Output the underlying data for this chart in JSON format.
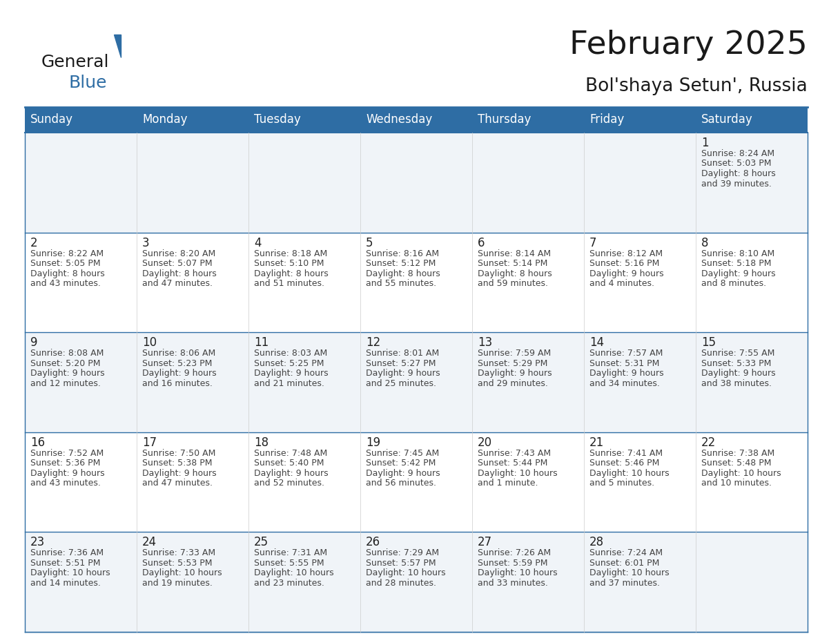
{
  "title": "February 2025",
  "subtitle": "Bol'shaya Setun', Russia",
  "header_bg": "#2E6DA4",
  "header_text_color": "#FFFFFF",
  "border_color": "#2E6DA4",
  "grid_line_color": "#AAAAAA",
  "day_headers": [
    "Sunday",
    "Monday",
    "Tuesday",
    "Wednesday",
    "Thursday",
    "Friday",
    "Saturday"
  ],
  "days": [
    {
      "day": 1,
      "col": 6,
      "row": 0,
      "sunrise": "8:24 AM",
      "sunset": "5:03 PM",
      "daylight": "8 hours",
      "daylight2": "and 39 minutes."
    },
    {
      "day": 2,
      "col": 0,
      "row": 1,
      "sunrise": "8:22 AM",
      "sunset": "5:05 PM",
      "daylight": "8 hours",
      "daylight2": "and 43 minutes."
    },
    {
      "day": 3,
      "col": 1,
      "row": 1,
      "sunrise": "8:20 AM",
      "sunset": "5:07 PM",
      "daylight": "8 hours",
      "daylight2": "and 47 minutes."
    },
    {
      "day": 4,
      "col": 2,
      "row": 1,
      "sunrise": "8:18 AM",
      "sunset": "5:10 PM",
      "daylight": "8 hours",
      "daylight2": "and 51 minutes."
    },
    {
      "day": 5,
      "col": 3,
      "row": 1,
      "sunrise": "8:16 AM",
      "sunset": "5:12 PM",
      "daylight": "8 hours",
      "daylight2": "and 55 minutes."
    },
    {
      "day": 6,
      "col": 4,
      "row": 1,
      "sunrise": "8:14 AM",
      "sunset": "5:14 PM",
      "daylight": "8 hours",
      "daylight2": "and 59 minutes."
    },
    {
      "day": 7,
      "col": 5,
      "row": 1,
      "sunrise": "8:12 AM",
      "sunset": "5:16 PM",
      "daylight": "9 hours",
      "daylight2": "and 4 minutes."
    },
    {
      "day": 8,
      "col": 6,
      "row": 1,
      "sunrise": "8:10 AM",
      "sunset": "5:18 PM",
      "daylight": "9 hours",
      "daylight2": "and 8 minutes."
    },
    {
      "day": 9,
      "col": 0,
      "row": 2,
      "sunrise": "8:08 AM",
      "sunset": "5:20 PM",
      "daylight": "9 hours",
      "daylight2": "and 12 minutes."
    },
    {
      "day": 10,
      "col": 1,
      "row": 2,
      "sunrise": "8:06 AM",
      "sunset": "5:23 PM",
      "daylight": "9 hours",
      "daylight2": "and 16 minutes."
    },
    {
      "day": 11,
      "col": 2,
      "row": 2,
      "sunrise": "8:03 AM",
      "sunset": "5:25 PM",
      "daylight": "9 hours",
      "daylight2": "and 21 minutes."
    },
    {
      "day": 12,
      "col": 3,
      "row": 2,
      "sunrise": "8:01 AM",
      "sunset": "5:27 PM",
      "daylight": "9 hours",
      "daylight2": "and 25 minutes."
    },
    {
      "day": 13,
      "col": 4,
      "row": 2,
      "sunrise": "7:59 AM",
      "sunset": "5:29 PM",
      "daylight": "9 hours",
      "daylight2": "and 29 minutes."
    },
    {
      "day": 14,
      "col": 5,
      "row": 2,
      "sunrise": "7:57 AM",
      "sunset": "5:31 PM",
      "daylight": "9 hours",
      "daylight2": "and 34 minutes."
    },
    {
      "day": 15,
      "col": 6,
      "row": 2,
      "sunrise": "7:55 AM",
      "sunset": "5:33 PM",
      "daylight": "9 hours",
      "daylight2": "and 38 minutes."
    },
    {
      "day": 16,
      "col": 0,
      "row": 3,
      "sunrise": "7:52 AM",
      "sunset": "5:36 PM",
      "daylight": "9 hours",
      "daylight2": "and 43 minutes."
    },
    {
      "day": 17,
      "col": 1,
      "row": 3,
      "sunrise": "7:50 AM",
      "sunset": "5:38 PM",
      "daylight": "9 hours",
      "daylight2": "and 47 minutes."
    },
    {
      "day": 18,
      "col": 2,
      "row": 3,
      "sunrise": "7:48 AM",
      "sunset": "5:40 PM",
      "daylight": "9 hours",
      "daylight2": "and 52 minutes."
    },
    {
      "day": 19,
      "col": 3,
      "row": 3,
      "sunrise": "7:45 AM",
      "sunset": "5:42 PM",
      "daylight": "9 hours",
      "daylight2": "and 56 minutes."
    },
    {
      "day": 20,
      "col": 4,
      "row": 3,
      "sunrise": "7:43 AM",
      "sunset": "5:44 PM",
      "daylight": "10 hours",
      "daylight2": "and 1 minute."
    },
    {
      "day": 21,
      "col": 5,
      "row": 3,
      "sunrise": "7:41 AM",
      "sunset": "5:46 PM",
      "daylight": "10 hours",
      "daylight2": "and 5 minutes."
    },
    {
      "day": 22,
      "col": 6,
      "row": 3,
      "sunrise": "7:38 AM",
      "sunset": "5:48 PM",
      "daylight": "10 hours",
      "daylight2": "and 10 minutes."
    },
    {
      "day": 23,
      "col": 0,
      "row": 4,
      "sunrise": "7:36 AM",
      "sunset": "5:51 PM",
      "daylight": "10 hours",
      "daylight2": "and 14 minutes."
    },
    {
      "day": 24,
      "col": 1,
      "row": 4,
      "sunrise": "7:33 AM",
      "sunset": "5:53 PM",
      "daylight": "10 hours",
      "daylight2": "and 19 minutes."
    },
    {
      "day": 25,
      "col": 2,
      "row": 4,
      "sunrise": "7:31 AM",
      "sunset": "5:55 PM",
      "daylight": "10 hours",
      "daylight2": "and 23 minutes."
    },
    {
      "day": 26,
      "col": 3,
      "row": 4,
      "sunrise": "7:29 AM",
      "sunset": "5:57 PM",
      "daylight": "10 hours",
      "daylight2": "and 28 minutes."
    },
    {
      "day": 27,
      "col": 4,
      "row": 4,
      "sunrise": "7:26 AM",
      "sunset": "5:59 PM",
      "daylight": "10 hours",
      "daylight2": "and 33 minutes."
    },
    {
      "day": 28,
      "col": 5,
      "row": 4,
      "sunrise": "7:24 AM",
      "sunset": "6:01 PM",
      "daylight": "10 hours",
      "daylight2": "and 37 minutes."
    }
  ],
  "num_rows": 5,
  "num_cols": 7,
  "title_fontsize": 34,
  "subtitle_fontsize": 19,
  "header_fontsize": 12,
  "day_num_fontsize": 12,
  "info_fontsize": 9
}
